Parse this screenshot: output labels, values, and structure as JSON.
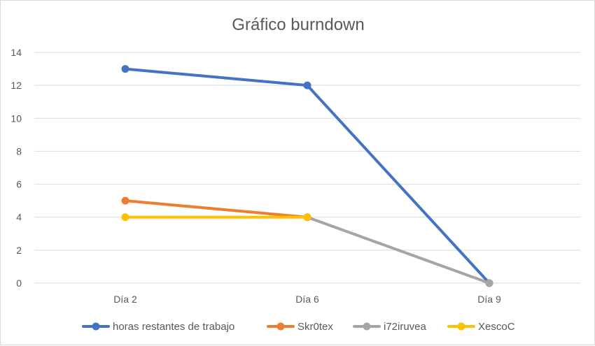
{
  "chart_data": {
    "type": "line",
    "title": "Gráfico burndown",
    "xlabel": "",
    "ylabel": "",
    "categories": [
      "Día 2",
      "Día 6",
      "Día 9"
    ],
    "ylim": [
      0,
      14
    ],
    "yticks": [
      0,
      2,
      4,
      6,
      8,
      10,
      12,
      14
    ],
    "grid": true,
    "legend_position": "bottom",
    "series": [
      {
        "name": "horas restantes de trabajo",
        "color": "#4472C4",
        "values": [
          13,
          12,
          0
        ]
      },
      {
        "name": "Skr0tex",
        "color": "#ED7D31",
        "values": [
          5,
          4,
          null
        ]
      },
      {
        "name": "i72iruvea",
        "color": "#A5A5A5",
        "values": [
          null,
          4,
          0
        ]
      },
      {
        "name": "XescoC",
        "color": "#FFC000",
        "values": [
          4,
          4,
          null
        ]
      }
    ]
  }
}
